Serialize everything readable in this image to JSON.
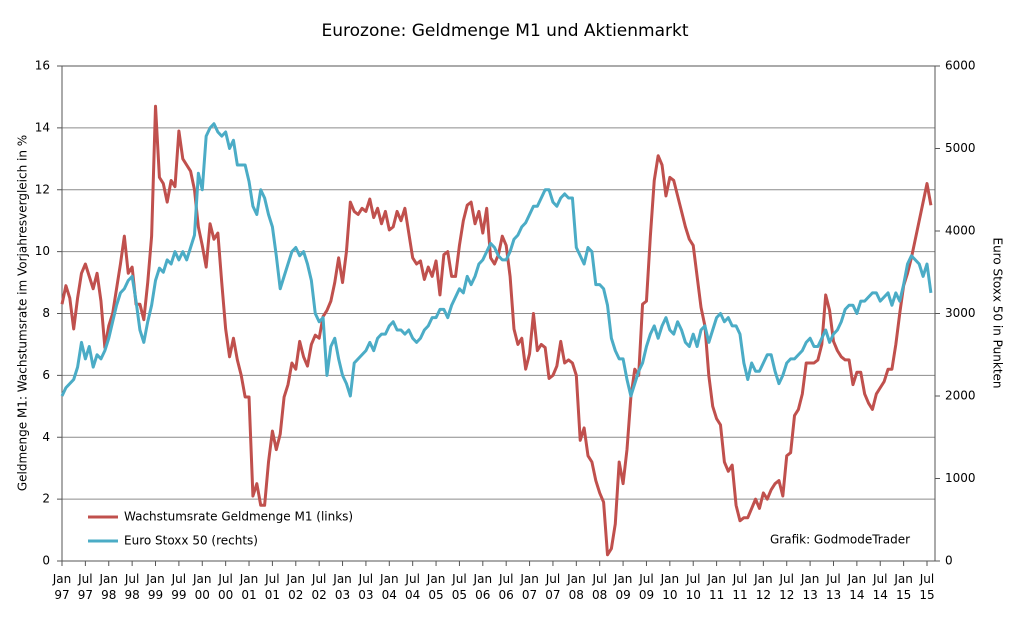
{
  "chart_data": {
    "type": "line",
    "title": "Eurozone: Geldmenge M1 und Aktienmarkt",
    "y_label": "Geldmenge M1: Wachstumsrate im Vorjahresvergleich in %",
    "y2_label": "Euro Stoxx 50 in Punkten",
    "annotation": "Grafik: GodmodeTrader",
    "legend": "lower left",
    "grid": true,
    "ylim": [
      0,
      16
    ],
    "yticks": [
      0,
      2,
      4,
      6,
      8,
      10,
      12,
      14,
      16
    ],
    "y2lim": [
      0,
      6000
    ],
    "y2ticks": [
      0,
      1000,
      2000,
      3000,
      4000,
      5000,
      6000
    ],
    "categories": [
      "Jan\n97",
      null,
      null,
      null,
      null,
      null,
      "Jul\n97",
      null,
      null,
      null,
      null,
      null,
      "Jan\n98",
      null,
      null,
      null,
      null,
      null,
      "Jul\n98",
      null,
      null,
      null,
      null,
      null,
      "Jan\n99",
      null,
      null,
      null,
      null,
      null,
      "Jul\n99",
      null,
      null,
      null,
      null,
      null,
      "Jan\n00",
      null,
      null,
      null,
      null,
      null,
      "Jul\n00",
      null,
      null,
      null,
      null,
      null,
      "Jan\n01",
      null,
      null,
      null,
      null,
      null,
      "Jul\n01",
      null,
      null,
      null,
      null,
      null,
      "Jan\n02",
      null,
      null,
      null,
      null,
      null,
      "Jul\n02",
      null,
      null,
      null,
      null,
      null,
      "Jan\n03",
      null,
      null,
      null,
      null,
      null,
      "Jul\n03",
      null,
      null,
      null,
      null,
      null,
      "Jan\n04",
      null,
      null,
      null,
      null,
      null,
      "Jul\n04",
      null,
      null,
      null,
      null,
      null,
      "Jan\n05",
      null,
      null,
      null,
      null,
      null,
      "Jul\n05",
      null,
      null,
      null,
      null,
      null,
      "Jan\n06",
      null,
      null,
      null,
      null,
      null,
      "Jul\n06",
      null,
      null,
      null,
      null,
      null,
      "Jan\n07",
      null,
      null,
      null,
      null,
      null,
      "Jul\n07",
      null,
      null,
      null,
      null,
      null,
      "Jan\n08",
      null,
      null,
      null,
      null,
      null,
      "Jul\n08",
      null,
      null,
      null,
      null,
      null,
      "Jan\n09",
      null,
      null,
      null,
      null,
      null,
      "Jul\n09",
      null,
      null,
      null,
      null,
      null,
      "Jan\n10",
      null,
      null,
      null,
      null,
      null,
      "Jul\n10",
      null,
      null,
      null,
      null,
      null,
      "Jan\n11",
      null,
      null,
      null,
      null,
      null,
      "Jul\n11",
      null,
      null,
      null,
      null,
      null,
      "Jan\n12",
      null,
      null,
      null,
      null,
      null,
      "Jul\n12",
      null,
      null,
      null,
      null,
      null,
      "Jan\n13",
      null,
      null,
      null,
      null,
      null,
      "Jul\n13",
      null,
      null,
      null,
      null,
      null,
      "Jan\n14",
      null,
      null,
      null,
      null,
      null,
      "Jul\n14",
      null,
      null,
      null,
      null,
      null,
      "Jan\n15",
      null,
      null,
      null,
      null,
      null,
      "Jul\n15",
      null
    ],
    "series": [
      {
        "name": "Wachstumsrate Geldmenge M1 (links)",
        "color": "#c0504d",
        "values": [
          8.3,
          8.9,
          8.5,
          7.5,
          8.5,
          9.3,
          9.6,
          9.2,
          8.8,
          9.3,
          8.4,
          6.9,
          7.6,
          8.0,
          8.8,
          9.6,
          10.5,
          9.3,
          9.5,
          8.3,
          8.3,
          7.8,
          9.0,
          10.5,
          14.7,
          12.4,
          12.2,
          11.6,
          12.3,
          12.1,
          13.9,
          13.0,
          12.8,
          12.6,
          12.0,
          10.8,
          10.2,
          9.5,
          10.9,
          10.4,
          10.6,
          9.0,
          7.5,
          6.6,
          7.2,
          6.5,
          6.0,
          5.3,
          5.3,
          2.1,
          2.5,
          1.8,
          1.8,
          3.2,
          4.2,
          3.6,
          4.1,
          5.3,
          5.7,
          6.4,
          6.2,
          7.1,
          6.6,
          6.3,
          7.0,
          7.3,
          7.2,
          7.9,
          8.1,
          8.4,
          9.0,
          9.8,
          9.0,
          10.0,
          11.6,
          11.3,
          11.2,
          11.4,
          11.3,
          11.7,
          11.1,
          11.4,
          10.9,
          11.3,
          10.7,
          10.8,
          11.3,
          11.0,
          11.4,
          10.6,
          9.8,
          9.6,
          9.7,
          9.1,
          9.5,
          9.2,
          9.7,
          8.6,
          9.9,
          10.0,
          9.2,
          9.2,
          10.2,
          11.0,
          11.5,
          11.6,
          10.9,
          11.3,
          10.6,
          11.4,
          9.8,
          9.6,
          9.9,
          10.5,
          10.2,
          9.2,
          7.5,
          7.0,
          7.2,
          6.2,
          6.7,
          8.0,
          6.8,
          7.0,
          6.9,
          5.9,
          6.0,
          6.3,
          7.1,
          6.4,
          6.5,
          6.4,
          6.0,
          3.9,
          4.3,
          3.4,
          3.2,
          2.6,
          2.2,
          1.9,
          0.2,
          0.4,
          1.2,
          3.2,
          2.5,
          3.6,
          5.3,
          6.2,
          6.0,
          8.3,
          8.4,
          10.5,
          12.3,
          13.1,
          12.8,
          11.8,
          12.4,
          12.3,
          11.8,
          11.3,
          10.8,
          10.4,
          10.2,
          9.2,
          8.2,
          7.6,
          6.0,
          5.0,
          4.6,
          4.4,
          3.2,
          2.9,
          3.1,
          1.8,
          1.3,
          1.4,
          1.4,
          1.7,
          2.0,
          1.7,
          2.2,
          2.0,
          2.3,
          2.5,
          2.6,
          2.1,
          3.4,
          3.5,
          4.7,
          4.9,
          5.4,
          6.4,
          6.4,
          6.4,
          6.5,
          7.0,
          8.6,
          8.1,
          7.1,
          6.8,
          6.6,
          6.5,
          6.5,
          5.7,
          6.1,
          6.1,
          5.4,
          5.1,
          4.9,
          5.4,
          5.6,
          5.8,
          6.2,
          6.2,
          7.0,
          8.0,
          8.9,
          9.3,
          9.8,
          10.4,
          11.0,
          11.6,
          12.2,
          11.5
        ]
      },
      {
        "name": "Euro Stoxx 50 (rechts)",
        "color": "#4bacc6",
        "axis": "y2",
        "values": [
          2000,
          2100,
          2150,
          2200,
          2350,
          2650,
          2450,
          2600,
          2350,
          2500,
          2450,
          2550,
          2700,
          2900,
          3100,
          3250,
          3300,
          3400,
          3450,
          3150,
          2800,
          2650,
          2900,
          3100,
          3400,
          3550,
          3500,
          3650,
          3600,
          3750,
          3650,
          3750,
          3650,
          3800,
          3950,
          4700,
          4500,
          5150,
          5250,
          5300,
          5200,
          5150,
          5200,
          5000,
          5100,
          4800,
          4800,
          4800,
          4600,
          4300,
          4200,
          4500,
          4400,
          4200,
          4050,
          3700,
          3300,
          3450,
          3600,
          3750,
          3800,
          3700,
          3750,
          3600,
          3400,
          3000,
          2900,
          2950,
          2250,
          2600,
          2700,
          2450,
          2250,
          2150,
          2000,
          2400,
          2450,
          2500,
          2550,
          2650,
          2550,
          2700,
          2750,
          2750,
          2850,
          2900,
          2800,
          2800,
          2750,
          2800,
          2700,
          2650,
          2700,
          2800,
          2850,
          2950,
          2950,
          3050,
          3050,
          2950,
          3100,
          3200,
          3300,
          3250,
          3450,
          3350,
          3450,
          3600,
          3650,
          3750,
          3850,
          3800,
          3700,
          3650,
          3650,
          3750,
          3900,
          3950,
          4050,
          4100,
          4200,
          4300,
          4300,
          4400,
          4500,
          4500,
          4350,
          4300,
          4400,
          4450,
          4400,
          4400,
          3800,
          3700,
          3600,
          3800,
          3750,
          3350,
          3350,
          3300,
          3100,
          2700,
          2550,
          2450,
          2450,
          2200,
          2000,
          2150,
          2300,
          2400,
          2600,
          2750,
          2850,
          2700,
          2850,
          2950,
          2800,
          2750,
          2900,
          2800,
          2650,
          2600,
          2750,
          2600,
          2800,
          2850,
          2650,
          2800,
          2950,
          3000,
          2900,
          2950,
          2850,
          2850,
          2750,
          2400,
          2200,
          2400,
          2300,
          2300,
          2400,
          2500,
          2500,
          2300,
          2150,
          2250,
          2400,
          2450,
          2450,
          2500,
          2550,
          2650,
          2700,
          2600,
          2600,
          2700,
          2800,
          2650,
          2750,
          2800,
          2900,
          3050,
          3100,
          3100,
          3000,
          3150,
          3150,
          3200,
          3250,
          3250,
          3150,
          3200,
          3250,
          3100,
          3250,
          3150,
          3350,
          3600,
          3700,
          3650,
          3600,
          3450,
          3600,
          3250
        ]
      }
    ]
  }
}
